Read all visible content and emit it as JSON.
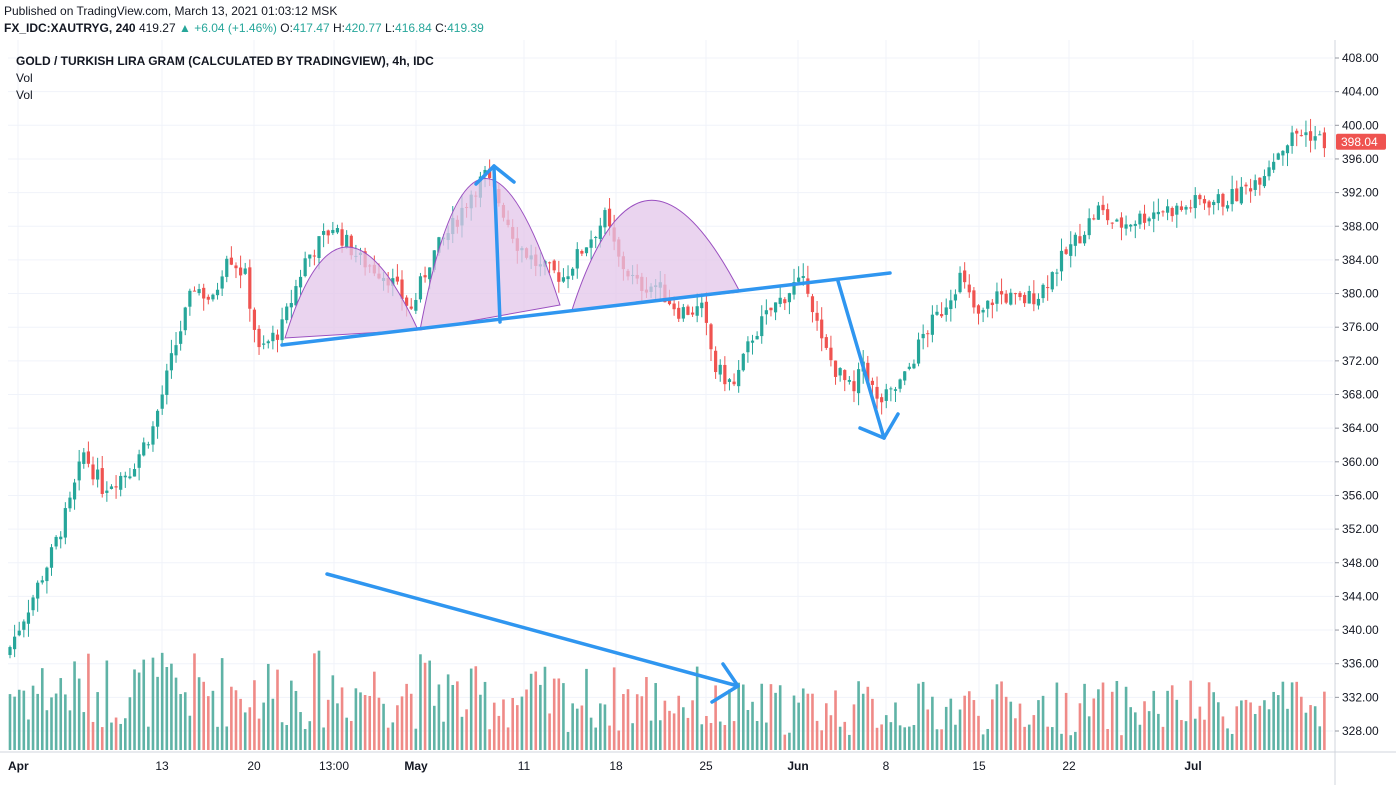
{
  "header": {
    "published": "Published on TradingView.com, March 13, 2021 01:03:12 MSK",
    "symbol": "FX_IDC:XAUTRYG, 240",
    "last": "419.27",
    "change": "▲ +6.04 (+1.46%)",
    "o_label": "O:",
    "o_value": "417.47",
    "h_label": "H:",
    "h_value": "420.77",
    "l_label": "L:",
    "l_value": "416.84",
    "c_label": "C:",
    "c_value": "419.39"
  },
  "legend": {
    "title": "GOLD / TURKISH LIRA GRAM (CALCULATED BY TRADINGVIEW), 4h, IDC",
    "vol1": "Vol",
    "vol2": "Vol"
  },
  "price_badge": "398.04",
  "colors": {
    "up": "#26a69a",
    "down": "#ef5350",
    "up_vol": "#5fb3a6",
    "down_vol": "#ef8a87",
    "drawing": "#2f96f0",
    "arc_fill": "#e3c6ea",
    "arc_stroke": "#9a4fc0",
    "grid": "#f0f3fa",
    "badge": "#ef5350"
  },
  "chart_data": {
    "type": "candlestick",
    "y_axis_ticks": [
      "408.00",
      "404.00",
      "400.00",
      "396.00",
      "392.00",
      "388.00",
      "384.00",
      "380.00",
      "376.00",
      "372.00",
      "368.00",
      "364.00",
      "360.00",
      "356.00",
      "352.00",
      "348.00",
      "344.00",
      "340.00",
      "336.00",
      "332.00",
      "328.00"
    ],
    "x_axis_ticks": [
      "Apr",
      "13",
      "20",
      "13:00",
      "May",
      "11",
      "18",
      "25",
      "Jun",
      "8",
      "15",
      "22",
      "Jul"
    ],
    "ylim": [
      326,
      410
    ],
    "close_path": [
      {
        "x": 0,
        "y": 338
      },
      {
        "x": 5,
        "y": 344
      },
      {
        "x": 9,
        "y": 349
      },
      {
        "x": 13,
        "y": 355
      },
      {
        "x": 16,
        "y": 361
      },
      {
        "x": 20,
        "y": 357
      },
      {
        "x": 26,
        "y": 359
      },
      {
        "x": 31,
        "y": 364
      },
      {
        "x": 36,
        "y": 374
      },
      {
        "x": 40,
        "y": 381
      },
      {
        "x": 44,
        "y": 379
      },
      {
        "x": 47,
        "y": 385
      },
      {
        "x": 51,
        "y": 382
      },
      {
        "x": 54,
        "y": 373
      },
      {
        "x": 59,
        "y": 376
      },
      {
        "x": 64,
        "y": 384
      },
      {
        "x": 70,
        "y": 388
      },
      {
        "x": 76,
        "y": 384
      },
      {
        "x": 82,
        "y": 382
      },
      {
        "x": 87,
        "y": 378
      },
      {
        "x": 91,
        "y": 384
      },
      {
        "x": 96,
        "y": 388
      },
      {
        "x": 100,
        "y": 392
      },
      {
        "x": 103,
        "y": 394
      },
      {
        "x": 106,
        "y": 391
      },
      {
        "x": 110,
        "y": 386
      },
      {
        "x": 115,
        "y": 383
      },
      {
        "x": 120,
        "y": 382
      },
      {
        "x": 125,
        "y": 386
      },
      {
        "x": 129,
        "y": 389
      },
      {
        "x": 132,
        "y": 384
      },
      {
        "x": 136,
        "y": 381
      },
      {
        "x": 140,
        "y": 381
      },
      {
        "x": 145,
        "y": 378
      },
      {
        "x": 150,
        "y": 378
      },
      {
        "x": 153,
        "y": 371
      },
      {
        "x": 157,
        "y": 369
      },
      {
        "x": 161,
        "y": 375
      },
      {
        "x": 165,
        "y": 378
      },
      {
        "x": 170,
        "y": 381
      },
      {
        "x": 173,
        "y": 381
      },
      {
        "x": 176,
        "y": 374
      },
      {
        "x": 179,
        "y": 371
      },
      {
        "x": 183,
        "y": 368
      },
      {
        "x": 185,
        "y": 372
      },
      {
        "x": 188,
        "y": 367
      },
      {
        "x": 191,
        "y": 368
      },
      {
        "x": 194,
        "y": 370
      },
      {
        "x": 198,
        "y": 375
      },
      {
        "x": 202,
        "y": 378
      },
      {
        "x": 206,
        "y": 382
      },
      {
        "x": 210,
        "y": 377
      },
      {
        "x": 214,
        "y": 380
      },
      {
        "x": 219,
        "y": 379
      },
      {
        "x": 223,
        "y": 380
      },
      {
        "x": 228,
        "y": 384
      },
      {
        "x": 232,
        "y": 387
      },
      {
        "x": 236,
        "y": 390
      },
      {
        "x": 240,
        "y": 388
      },
      {
        "x": 245,
        "y": 389
      },
      {
        "x": 249,
        "y": 390
      },
      {
        "x": 254,
        "y": 390
      },
      {
        "x": 258,
        "y": 391
      },
      {
        "x": 263,
        "y": 391
      },
      {
        "x": 267,
        "y": 392
      },
      {
        "x": 271,
        "y": 394
      },
      {
        "x": 275,
        "y": 397
      },
      {
        "x": 279,
        "y": 399
      },
      {
        "x": 282,
        "y": 399
      },
      {
        "x": 285,
        "y": 398
      }
    ],
    "approx_value_range": [
      337,
      401
    ],
    "last_price": 398.04
  }
}
